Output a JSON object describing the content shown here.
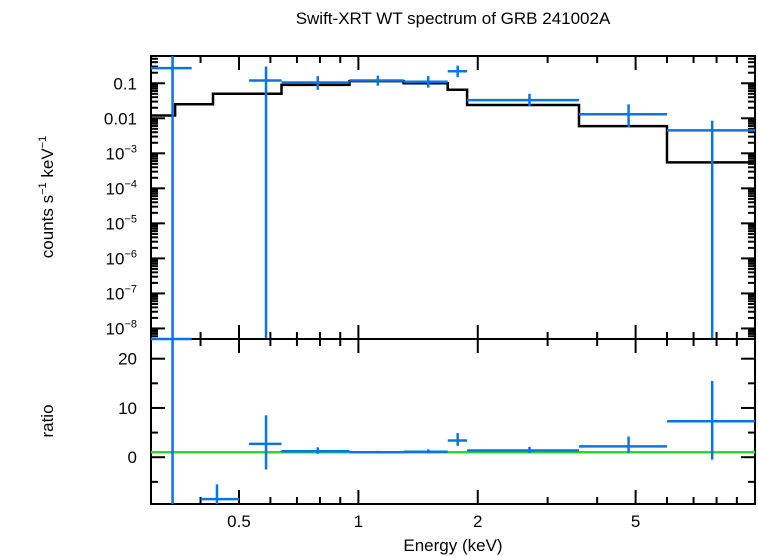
{
  "chart_data": {
    "type": "scatter",
    "title": "Swift-XRT WT spectrum of GRB 241002A",
    "xlabel": "Energy (keV)",
    "xscale": "log",
    "xlim": [
      0.3,
      10
    ],
    "xticks": [
      {
        "value": 0.5,
        "label": "0.5"
      },
      {
        "value": 1,
        "label": "1"
      },
      {
        "value": 2,
        "label": "2"
      },
      {
        "value": 5,
        "label": "5"
      }
    ],
    "colors": {
      "data": "#0a74e6",
      "model": "#000000",
      "unity": "#22dd22"
    },
    "panels": [
      {
        "name": "spectrum",
        "ylabel_main": "counts s",
        "ylabel_sup1": "−1",
        "ylabel_mid": " keV",
        "ylabel_sup2": "−1",
        "yscale": "log",
        "ylim": [
          5e-09,
          0.6
        ],
        "yticks": [
          {
            "value": 0.1,
            "label": "0.1"
          },
          {
            "value": 0.01,
            "label": "0.01"
          },
          {
            "value": 0.001,
            "base": "10",
            "exp": "−3"
          },
          {
            "value": 0.0001,
            "base": "10",
            "exp": "−4"
          },
          {
            "value": 1e-05,
            "base": "10",
            "exp": "−5"
          },
          {
            "value": 1e-06,
            "base": "10",
            "exp": "−6"
          },
          {
            "value": 1e-07,
            "base": "10",
            "exp": "−7"
          },
          {
            "value": 1e-08,
            "base": "10",
            "exp": "−8"
          }
        ],
        "series": [
          {
            "name": "data",
            "points": [
              {
                "x": 0.34,
                "xlo": 0.3,
                "xhi": 0.38,
                "y": 0.27,
                "ylo": 5e-09,
                "yhi": 0.6
              },
              {
                "x": 0.585,
                "xlo": 0.53,
                "xhi": 0.64,
                "y": 0.12,
                "ylo": 5e-09,
                "yhi": 0.3
              },
              {
                "x": 0.79,
                "xlo": 0.64,
                "xhi": 0.95,
                "y": 0.105,
                "ylo": 0.065,
                "yhi": 0.16
              },
              {
                "x": 1.12,
                "xlo": 0.95,
                "xhi": 1.3,
                "y": 0.12,
                "ylo": 0.085,
                "yhi": 0.165
              },
              {
                "x": 1.5,
                "xlo": 1.3,
                "xhi": 1.68,
                "y": 0.11,
                "ylo": 0.075,
                "yhi": 0.16
              },
              {
                "x": 1.78,
                "xlo": 1.68,
                "xhi": 1.88,
                "y": 0.22,
                "ylo": 0.15,
                "yhi": 0.32
              },
              {
                "x": 2.7,
                "xlo": 1.88,
                "xhi": 3.6,
                "y": 0.033,
                "ylo": 0.022,
                "yhi": 0.05
              },
              {
                "x": 4.8,
                "xlo": 3.6,
                "xhi": 6.0,
                "y": 0.013,
                "ylo": 0.0055,
                "yhi": 0.025
              },
              {
                "x": 7.8,
                "xlo": 6.0,
                "xhi": 10,
                "y": 0.0045,
                "ylo": 5e-09,
                "yhi": 0.0085
              }
            ]
          },
          {
            "name": "model",
            "steps": [
              {
                "xlo": 0.3,
                "xhi": 0.345,
                "y": 0.012
              },
              {
                "xlo": 0.345,
                "xhi": 0.43,
                "y": 0.025
              },
              {
                "xlo": 0.43,
                "xhi": 0.535,
                "y": 0.05
              },
              {
                "xlo": 0.535,
                "xhi": 0.64,
                "y": 0.05
              },
              {
                "xlo": 0.64,
                "xhi": 0.95,
                "y": 0.09
              },
              {
                "xlo": 0.95,
                "xhi": 1.3,
                "y": 0.115
              },
              {
                "xlo": 1.3,
                "xhi": 1.68,
                "y": 0.1
              },
              {
                "xlo": 1.68,
                "xhi": 1.88,
                "y": 0.065
              },
              {
                "xlo": 1.88,
                "xhi": 3.6,
                "y": 0.024
              },
              {
                "xlo": 3.6,
                "xhi": 6.0,
                "y": 0.006
              },
              {
                "xlo": 6.0,
                "xhi": 10,
                "y": 0.00055
              }
            ]
          }
        ]
      },
      {
        "name": "ratio",
        "ylabel": "ratio",
        "yscale": "linear",
        "ylim": [
          -9.5,
          24
        ],
        "yticks": [
          {
            "value": 0,
            "label": "0"
          },
          {
            "value": 10,
            "label": "10"
          },
          {
            "value": 20,
            "label": "20"
          }
        ],
        "unity": 1,
        "points": [
          {
            "x": 0.34,
            "xlo": 0.3,
            "xhi": 0.38,
            "y": 24,
            "ylo": -9.5,
            "yhi": 24
          },
          {
            "x": 0.44,
            "xlo": 0.4,
            "xhi": 0.5,
            "y": -8.5,
            "ylo": -9.5,
            "yhi": -5.5
          },
          {
            "x": 0.585,
            "xlo": 0.53,
            "xhi": 0.64,
            "y": 2.7,
            "ylo": -2.5,
            "yhi": 8.5
          },
          {
            "x": 0.79,
            "xlo": 0.64,
            "xhi": 0.95,
            "y": 1.2,
            "ylo": 0.7,
            "yhi": 2.0
          },
          {
            "x": 1.12,
            "xlo": 0.95,
            "xhi": 1.3,
            "y": 1.0,
            "ylo": 0.75,
            "yhi": 1.3
          },
          {
            "x": 1.5,
            "xlo": 1.3,
            "xhi": 1.68,
            "y": 1.1,
            "ylo": 0.75,
            "yhi": 1.6
          },
          {
            "x": 1.78,
            "xlo": 1.68,
            "xhi": 1.88,
            "y": 3.4,
            "ylo": 2.3,
            "yhi": 4.9
          },
          {
            "x": 2.7,
            "xlo": 1.88,
            "xhi": 3.6,
            "y": 1.35,
            "ylo": 0.9,
            "yhi": 2.1
          },
          {
            "x": 4.8,
            "xlo": 3.6,
            "xhi": 6.0,
            "y": 2.2,
            "ylo": 0.9,
            "yhi": 4.2
          },
          {
            "x": 7.8,
            "xlo": 6.0,
            "xhi": 10,
            "y": 7.3,
            "ylo": -0.5,
            "yhi": 15.5
          }
        ]
      }
    ]
  }
}
